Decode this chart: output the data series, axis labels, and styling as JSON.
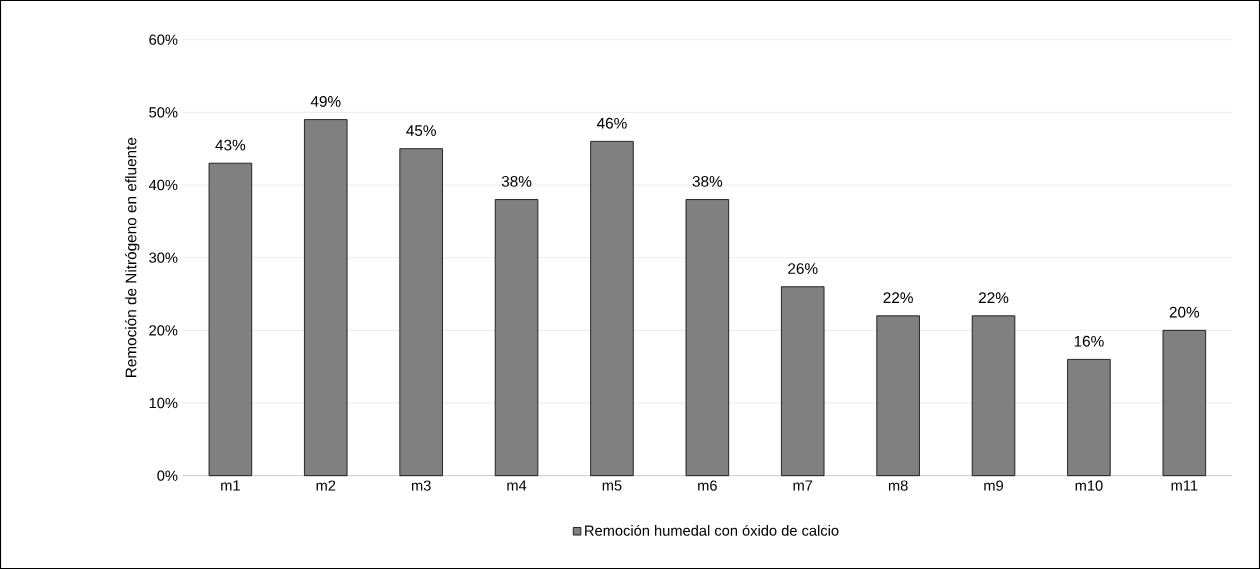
{
  "chart_data": {
    "type": "bar",
    "ylabel": "Remoción de Nitrógeno en efluente",
    "categories": [
      "m1",
      "m2",
      "m3",
      "m4",
      "m5",
      "m6",
      "m7",
      "m8",
      "m9",
      "m10",
      "m11"
    ],
    "series": [
      {
        "name": "Remoción humedal con óxido de calcio",
        "color": "#808080",
        "values": [
          43,
          49,
          45,
          38,
          46,
          38,
          26,
          22,
          22,
          16,
          20
        ],
        "value_labels": [
          "43%",
          "49%",
          "45%",
          "38%",
          "46%",
          "38%",
          "26%",
          "22%",
          "22%",
          "16%",
          "20%"
        ]
      }
    ],
    "ylim": [
      0,
      60
    ],
    "yticks": [
      {
        "value": 0,
        "label": "0%"
      },
      {
        "value": 10,
        "label": "10%"
      },
      {
        "value": 20,
        "label": "20%"
      },
      {
        "value": 30,
        "label": "30%"
      },
      {
        "value": 40,
        "label": "40%"
      },
      {
        "value": 50,
        "label": "50%"
      },
      {
        "value": 60,
        "label": "60%"
      }
    ],
    "grid": "y",
    "legend": "bottom"
  }
}
